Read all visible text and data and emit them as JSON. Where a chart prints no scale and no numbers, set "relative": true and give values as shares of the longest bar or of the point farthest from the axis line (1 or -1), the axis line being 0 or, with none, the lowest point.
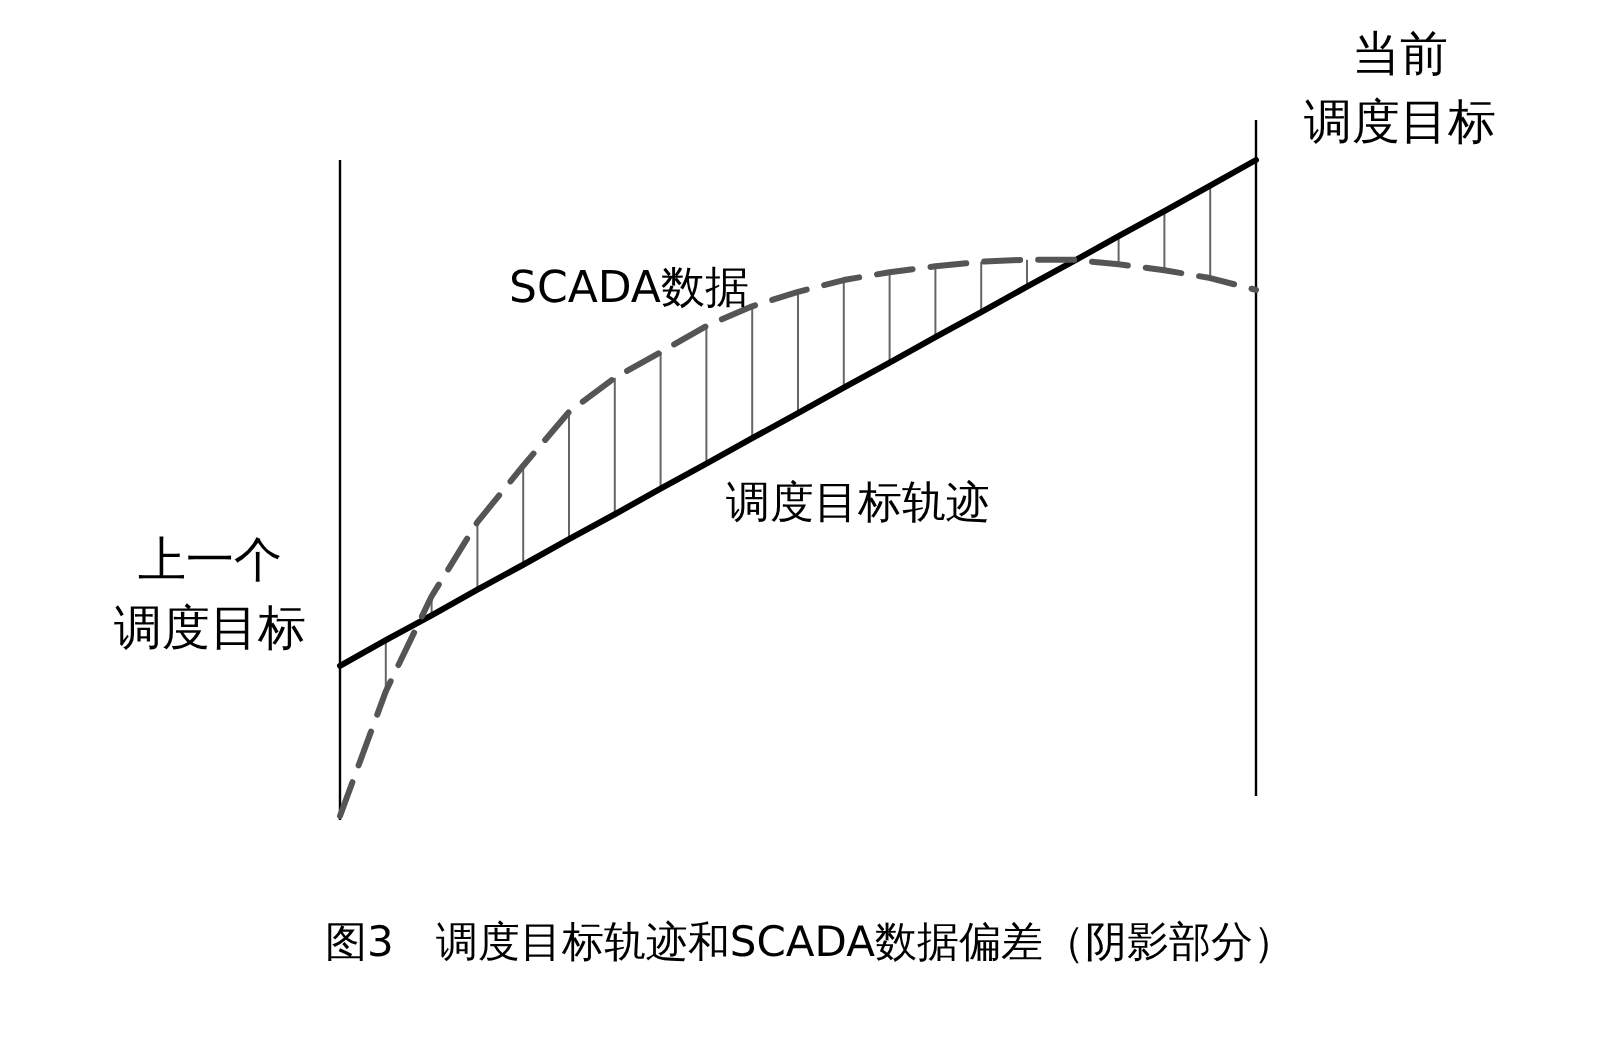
{
  "chart_data": {
    "type": "line",
    "relative": true,
    "legend": false,
    "grid": false,
    "marker": "none",
    "title": "图3　调度目标轨迹和SCADA数据偏差（阴影部分）",
    "categories": [
      null,
      null,
      null,
      null,
      null,
      null,
      null,
      null,
      null,
      null,
      null,
      null,
      null,
      null,
      null,
      null,
      null,
      null,
      null,
      null,
      null
    ],
    "series": [
      {
        "name": "SCADA数据",
        "color": "#555555",
        "line_style": "dashed",
        "values": [
          0,
          0.19,
          0.335,
          0.448,
          0.534,
          0.616,
          0.668,
          0.707,
          0.747,
          0.777,
          0.799,
          0.817,
          0.829,
          0.838,
          0.845,
          0.848,
          0.848,
          0.841,
          0.832,
          0.82,
          0.802
        ]
      },
      {
        "name": "调度目标轨迹",
        "color": "#000000",
        "line_style": "solid",
        "values": [
          0.229,
          0.268,
          0.306,
          0.345,
          0.383,
          0.422,
          0.46,
          0.499,
          0.537,
          0.576,
          0.614,
          0.653,
          0.691,
          0.73,
          0.768,
          0.807,
          0.845,
          0.884,
          0.922,
          0.961,
          1.0
        ]
      }
    ],
    "annotations": [
      "上一个调度目标",
      "当前调度目标"
    ]
  }
}
